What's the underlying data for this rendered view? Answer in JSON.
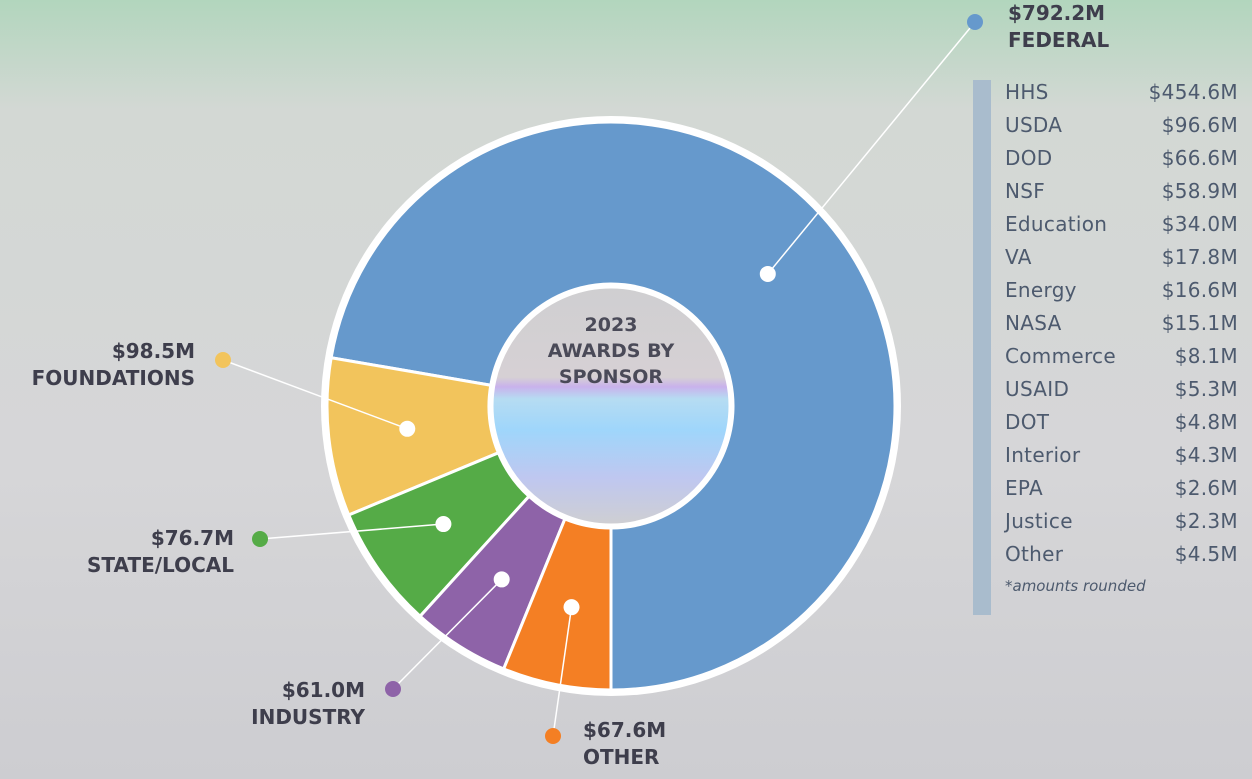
{
  "chart_data": {
    "type": "donut",
    "title": "2023 AWARDS BY SPONSOR",
    "categories": [
      "FEDERAL",
      "FOUNDATIONS",
      "STATE/LOCAL",
      "INDUSTRY",
      "OTHER"
    ],
    "values": [
      792.2,
      98.5,
      76.7,
      61.0,
      67.6
    ],
    "value_labels": [
      "$792.2M",
      "$98.5M",
      "$76.7M",
      "$61.0M",
      "$67.6M"
    ],
    "colors": [
      "#6699cc",
      "#f2c45c",
      "#55ab47",
      "#8e63a8",
      "#f47f24"
    ]
  },
  "breakdown": {
    "rows": [
      [
        "HHS",
        "$454.6M"
      ],
      [
        "USDA",
        "$96.6M"
      ],
      [
        "DOD",
        "$66.6M"
      ],
      [
        "NSF",
        "$58.9M"
      ],
      [
        "Education",
        "$34.0M"
      ],
      [
        "VA",
        "$17.8M"
      ],
      [
        "Energy",
        "$16.6M"
      ],
      [
        "NASA",
        "$15.1M"
      ],
      [
        "Commerce",
        "$8.1M"
      ],
      [
        "USAID",
        "$5.3M"
      ],
      [
        "DOT",
        "$4.8M"
      ],
      [
        "Interior",
        "$4.3M"
      ],
      [
        "EPA",
        "$2.6M"
      ],
      [
        "Justice",
        "$2.3M"
      ],
      [
        "Other",
        "$4.5M"
      ]
    ],
    "note": "*amounts rounded"
  }
}
